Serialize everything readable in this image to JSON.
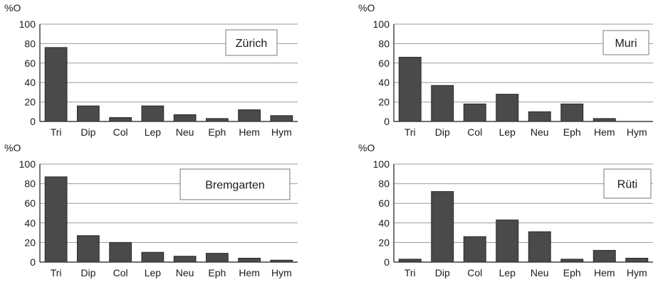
{
  "colors": {
    "bar": "#4a4a4a",
    "bar_edge": "#2a2a2a",
    "grid": "#9a9a9a",
    "axis": "#1a1a1a"
  },
  "chart_data": [
    {
      "type": "bar",
      "title": "Zürich",
      "ylabel": "%O",
      "ylim": [
        0,
        100
      ],
      "yticks": [
        "0",
        "20",
        "40",
        "60",
        "80",
        "100"
      ],
      "grid": true,
      "legend": "top-right",
      "categories": [
        "Tri",
        "Dip",
        "Col",
        "Lep",
        "Neu",
        "Eph",
        "Hem",
        "Hym"
      ],
      "values": [
        76,
        16,
        4,
        16,
        7,
        3,
        12,
        6
      ]
    },
    {
      "type": "bar",
      "title": "Muri",
      "ylabel": "%O",
      "ylim": [
        0,
        100
      ],
      "yticks": [
        "0",
        "20",
        "40",
        "60",
        "80",
        "100"
      ],
      "grid": true,
      "legend": "top-right",
      "categories": [
        "Tri",
        "Dip",
        "Col",
        "Lep",
        "Neu",
        "Eph",
        "Hem",
        "Hym"
      ],
      "values": [
        66,
        37,
        18,
        28,
        10,
        18,
        3,
        0
      ]
    },
    {
      "type": "bar",
      "title": "Bremgarten",
      "ylabel": "%O",
      "ylim": [
        0,
        100
      ],
      "yticks": [
        "0",
        "20",
        "40",
        "60",
        "80",
        "100"
      ],
      "grid": true,
      "legend": "top-right",
      "categories": [
        "Tri",
        "Dip",
        "Col",
        "Lep",
        "Neu",
        "Eph",
        "Hem",
        "Hym"
      ],
      "values": [
        87,
        27,
        20,
        10,
        6,
        9,
        4,
        2
      ]
    },
    {
      "type": "bar",
      "title": "Rüti",
      "ylabel": "%O",
      "ylim": [
        0,
        100
      ],
      "yticks": [
        "0",
        "20",
        "40",
        "60",
        "80",
        "100"
      ],
      "grid": true,
      "legend": "top-right",
      "categories": [
        "Tri",
        "Dip",
        "Col",
        "Lep",
        "Neu",
        "Eph",
        "Hem",
        "Hym"
      ],
      "values": [
        3,
        72,
        26,
        43,
        31,
        3,
        12,
        4
      ]
    }
  ]
}
